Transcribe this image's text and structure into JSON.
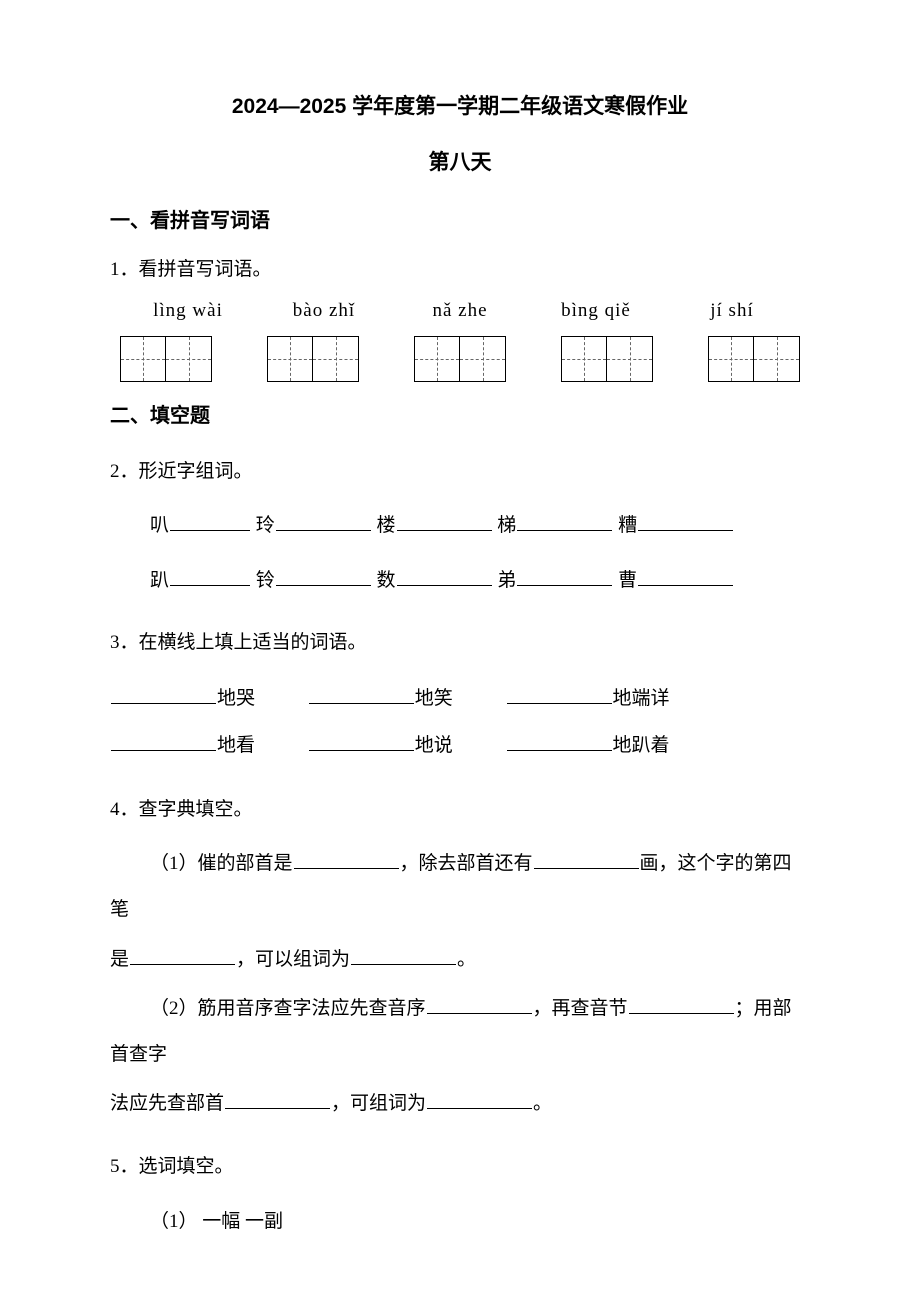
{
  "title": "2024—2025 学年度第一学期二年级语文寒假作业",
  "subtitle": "第八天",
  "section1": {
    "heading": "一、看拼音写词语",
    "q1_label": "1．看拼音写词语。",
    "pinyin": [
      "lìng wài",
      "bào zhǐ",
      "nǎ zhe",
      "bìng qiě",
      "jí shí"
    ]
  },
  "section2": {
    "heading": "二、填空题",
    "q2": {
      "label": "2．形近字组词。",
      "row1": [
        "叭",
        "玲",
        "楼",
        "梯",
        "糟"
      ],
      "row2": [
        "趴",
        "铃",
        "数",
        "弟",
        "曹"
      ]
    },
    "q3": {
      "label": "3．在横线上填上适当的词语。",
      "r1a": "地哭",
      "r1b": "地笑",
      "r1c": "地端详",
      "r2a": "地看",
      "r2b": "地说",
      "r2c": "地趴着"
    },
    "q4": {
      "label": "4．查字典填空。",
      "s1a": "（1）催的部首是",
      "s1b": "，除去部首还有",
      "s1c": "画，这个字的第四笔",
      "s1d": "是",
      "s1e": "，可以组词为",
      "s1f": "。",
      "s2a": "（2）筋用音序查字法应先查音序",
      "s2b": "，再查音节",
      "s2c": "；用部首查字",
      "s2d": "法应先查部首",
      "s2e": "，可组词为",
      "s2f": "。"
    },
    "q5": {
      "label": "5．选词填空。",
      "s1": "（1）  一幅    一副"
    }
  }
}
